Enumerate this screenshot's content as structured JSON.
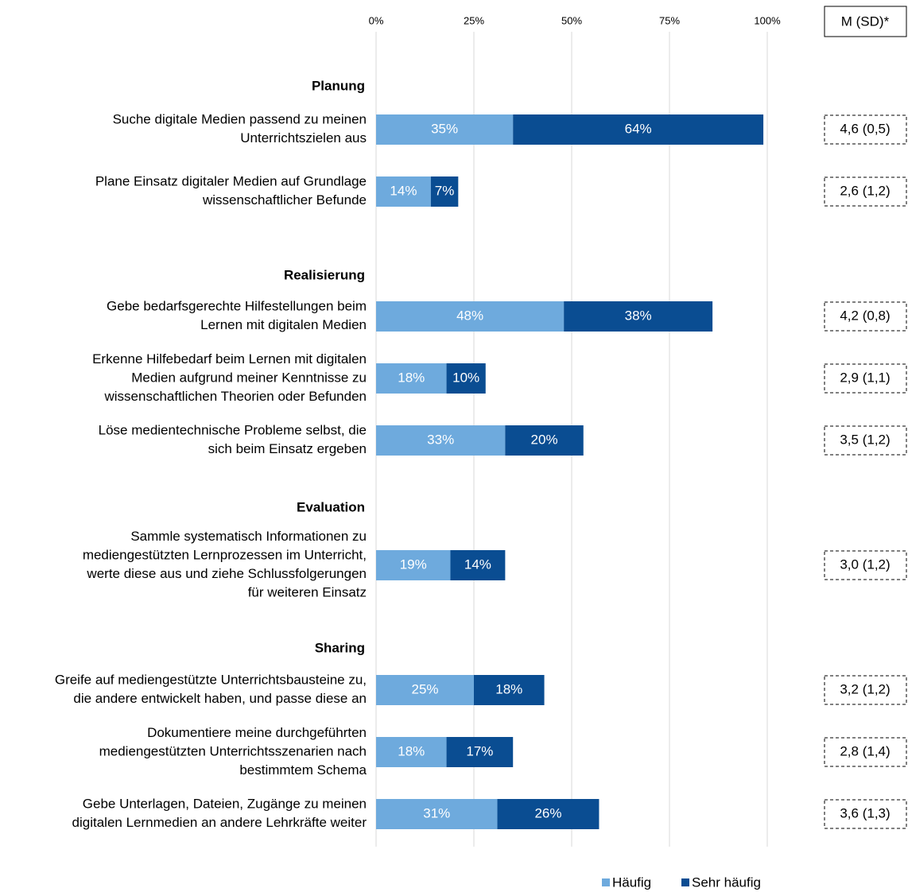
{
  "chart_data": {
    "type": "stacked-bar-horizontal",
    "stat_header": "M (SD)*",
    "xlim": [
      0,
      100
    ],
    "xticks": [
      {
        "value": 0,
        "label": "0%"
      },
      {
        "value": 25,
        "label": "25%"
      },
      {
        "value": 50,
        "label": "50%"
      },
      {
        "value": 75,
        "label": "75%"
      },
      {
        "value": 100,
        "label": "100%"
      }
    ],
    "grid": true,
    "series": [
      {
        "name": "Häufig",
        "color": "#6eaadd"
      },
      {
        "name": "Sehr häufig",
        "color": "#0a4d92"
      }
    ],
    "groups": [
      {
        "name": "Planung",
        "rows": [
          {
            "label": [
              "Suche digitale Medien passend zu meinen",
              "Unterrichtszielen aus"
            ],
            "values": [
              35,
              64
            ],
            "value_labels": [
              "35%",
              "64%"
            ],
            "stat": "4,6 (0,5)"
          },
          {
            "label": [
              "Plane Einsatz digitaler Medien auf Grundlage",
              "wissenschaftlicher Befunde"
            ],
            "values": [
              14,
              7
            ],
            "value_labels": [
              "14%",
              "7%"
            ],
            "stat": "2,6 (1,2)"
          }
        ]
      },
      {
        "name": "Realisierung",
        "rows": [
          {
            "label": [
              "Gebe bedarfsgerechte Hilfestellungen beim",
              "Lernen mit digitalen Medien"
            ],
            "values": [
              48,
              38
            ],
            "value_labels": [
              "48%",
              "38%"
            ],
            "stat": "4,2 (0,8)"
          },
          {
            "label": [
              "Erkenne Hilfebedarf beim Lernen mit digitalen",
              "Medien aufgrund meiner Kenntnisse zu",
              "wissenschaftlichen Theorien oder Befunden"
            ],
            "values": [
              18,
              10
            ],
            "value_labels": [
              "18%",
              "10%"
            ],
            "stat": "2,9 (1,1)"
          },
          {
            "label": [
              "Löse medientechnische Probleme selbst, die",
              "sich beim Einsatz ergeben"
            ],
            "values": [
              33,
              20
            ],
            "value_labels": [
              "33%",
              "20%"
            ],
            "stat": "3,5 (1,2)"
          }
        ]
      },
      {
        "name": "Evaluation",
        "rows": [
          {
            "label": [
              "Sammle systematisch Informationen zu",
              "mediengestützten Lernprozessen im Unterricht,",
              "werte diese aus und ziehe Schlussfolgerungen",
              "für weiteren Einsatz"
            ],
            "values": [
              19,
              14
            ],
            "value_labels": [
              "19%",
              "14%"
            ],
            "stat": "3,0 (1,2)"
          }
        ]
      },
      {
        "name": "Sharing",
        "rows": [
          {
            "label": [
              "Greife auf mediengestützte Unterrichtsbausteine zu,",
              "die andere entwickelt haben, und passe diese an"
            ],
            "values": [
              25,
              18
            ],
            "value_labels": [
              "25%",
              "18%"
            ],
            "stat": "3,2 (1,2)"
          },
          {
            "label": [
              "Dokumentiere meine durchgeführten",
              "mediengestützten Unterrichtsszenarien nach",
              "bestimmtem Schema"
            ],
            "values": [
              18,
              17
            ],
            "value_labels": [
              "18%",
              "17%"
            ],
            "stat": "2,8 (1,4)"
          },
          {
            "label": [
              "Gebe Unterlagen, Dateien, Zugänge zu meinen",
              "digitalen Lernmedien an andere Lehrkräfte weiter"
            ],
            "values": [
              31,
              26
            ],
            "value_labels": [
              "31%",
              "26%"
            ],
            "stat": "3,6 (1,3)"
          }
        ]
      }
    ]
  }
}
